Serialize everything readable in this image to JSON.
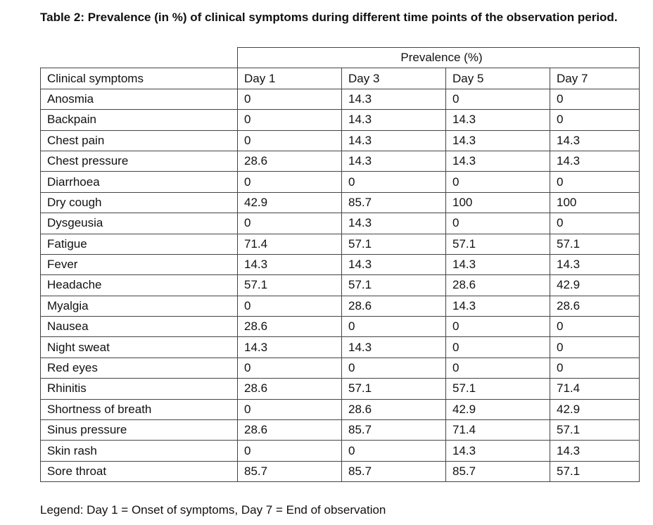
{
  "title": "Table 2: Prevalence (in %) of clinical symptoms during different time points of the observation period.",
  "table": {
    "group_header": "Prevalence (%)",
    "columns": [
      "Clinical symptoms",
      "Day 1",
      "Day 3",
      "Day 5",
      "Day 7"
    ],
    "rows": [
      [
        "Anosmia",
        "0",
        "14.3",
        "0",
        "0"
      ],
      [
        "Backpain",
        "0",
        "14.3",
        "14.3",
        "0"
      ],
      [
        "Chest pain",
        "0",
        "14.3",
        "14.3",
        "14.3"
      ],
      [
        "Chest pressure",
        "28.6",
        "14.3",
        "14.3",
        "14.3"
      ],
      [
        "Diarrhoea",
        "0",
        "0",
        "0",
        "0"
      ],
      [
        "Dry cough",
        "42.9",
        "85.7",
        "100",
        "100"
      ],
      [
        "Dysgeusia",
        "0",
        "14.3",
        "0",
        "0"
      ],
      [
        "Fatigue",
        "71.4",
        "57.1",
        "57.1",
        "57.1"
      ],
      [
        "Fever",
        "14.3",
        "14.3",
        "14.3",
        "14.3"
      ],
      [
        "Headache",
        "57.1",
        "57.1",
        "28.6",
        "42.9"
      ],
      [
        "Myalgia",
        "0",
        "28.6",
        "14.3",
        "28.6"
      ],
      [
        "Nausea",
        "28.6",
        "0",
        "0",
        "0"
      ],
      [
        "Night sweat",
        "14.3",
        "14.3",
        "0",
        "0"
      ],
      [
        "Red eyes",
        "0",
        "0",
        "0",
        "0"
      ],
      [
        "Rhinitis",
        "28.6",
        "57.1",
        "57.1",
        "71.4"
      ],
      [
        "Shortness of breath",
        "0",
        "28.6",
        "42.9",
        "42.9"
      ],
      [
        "Sinus pressure",
        "28.6",
        "85.7",
        "71.4",
        "57.1"
      ],
      [
        "Skin rash",
        "0",
        "0",
        "14.3",
        "14.3"
      ],
      [
        "Sore throat",
        "85.7",
        "85.7",
        "85.7",
        "57.1"
      ]
    ]
  },
  "legend": "Legend: Day 1 = Onset of symptoms, Day 7 = End of observation"
}
